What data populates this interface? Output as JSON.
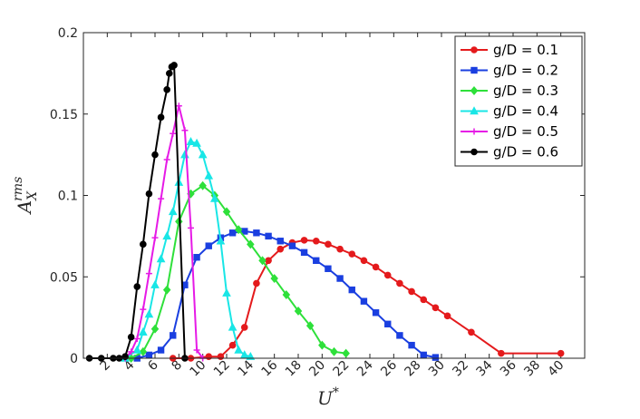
{
  "chart_data": {
    "type": "line",
    "xlabel": "U",
    "xlabel_sup": "*",
    "ylabel": "A",
    "ylabel_sub": "X",
    "ylabel_sup": "rms",
    "xlim": [
      0,
      42
    ],
    "ylim": [
      0,
      0.2
    ],
    "xticks": [
      2,
      4,
      6,
      8,
      10,
      12,
      14,
      16,
      18,
      20,
      22,
      24,
      26,
      28,
      30,
      32,
      34,
      36,
      38,
      40
    ],
    "xtick_labels": [
      "2",
      "4",
      "6",
      "8",
      "10",
      "12",
      "14",
      "16",
      "18",
      "20",
      "22",
      "24",
      "26",
      "28",
      "30",
      "32",
      "34",
      "36",
      "38",
      "40"
    ],
    "yticks": [
      0,
      0.05,
      0.1,
      0.15,
      0.2
    ],
    "ytick_labels": [
      "0",
      "0.05",
      "0.1",
      "0.15",
      "0.2"
    ],
    "grid": false,
    "legend_position": "top-right",
    "series": [
      {
        "name": "g/D = 0.1",
        "color": "#e41a1c",
        "marker": "circle",
        "x": [
          7.5,
          9,
          10.5,
          11.5,
          12.5,
          13.5,
          14.5,
          15.5,
          16.5,
          17.5,
          18.5,
          19.5,
          20.5,
          21.5,
          22.5,
          23.5,
          24.5,
          25.5,
          26.5,
          27.5,
          28.5,
          29.5,
          30.5,
          32.5,
          35,
          40
        ],
        "y": [
          0,
          0,
          0.001,
          0.001,
          0.008,
          0.019,
          0.046,
          0.06,
          0.067,
          0.071,
          0.0725,
          0.072,
          0.07,
          0.067,
          0.064,
          0.06,
          0.056,
          0.051,
          0.046,
          0.041,
          0.036,
          0.031,
          0.026,
          0.016,
          0.003,
          0.003
        ]
      },
      {
        "name": "g/D = 0.2",
        "color": "#1a3fe0",
        "marker": "square",
        "x": [
          4.5,
          5.5,
          6.5,
          7.5,
          8.5,
          9.5,
          10.5,
          11.5,
          12.5,
          13.5,
          14.5,
          15.5,
          16.5,
          17.5,
          18.5,
          19.5,
          20.5,
          21.5,
          22.5,
          23.5,
          24.5,
          25.5,
          26.5,
          27.5,
          28.5,
          29.5
        ],
        "y": [
          0,
          0.002,
          0.005,
          0.014,
          0.045,
          0.062,
          0.069,
          0.074,
          0.077,
          0.078,
          0.077,
          0.075,
          0.072,
          0.069,
          0.065,
          0.06,
          0.055,
          0.049,
          0.042,
          0.035,
          0.028,
          0.021,
          0.014,
          0.008,
          0.002,
          0.0005
        ]
      },
      {
        "name": "g/D = 0.3",
        "color": "#2ee03a",
        "marker": "diamond",
        "x": [
          4,
          5,
          6,
          7,
          8,
          9,
          10,
          11,
          12,
          13,
          14,
          15,
          16,
          17,
          18,
          19,
          20,
          21,
          22
        ],
        "y": [
          0,
          0.004,
          0.018,
          0.042,
          0.084,
          0.101,
          0.106,
          0.1,
          0.09,
          0.079,
          0.07,
          0.06,
          0.049,
          0.039,
          0.029,
          0.02,
          0.008,
          0.004,
          0.003
        ]
      },
      {
        "name": "g/D = 0.4",
        "color": "#19e6e6",
        "marker": "triangle",
        "x": [
          3.5,
          4.5,
          5,
          5.5,
          6,
          6.5,
          7,
          7.5,
          8,
          8.5,
          9,
          9.5,
          10,
          10.5,
          11,
          11.5,
          12,
          12.5,
          13,
          13.5,
          14
        ],
        "y": [
          0,
          0.005,
          0.016,
          0.027,
          0.045,
          0.061,
          0.075,
          0.09,
          0.108,
          0.125,
          0.133,
          0.132,
          0.125,
          0.112,
          0.098,
          0.072,
          0.04,
          0.019,
          0.005,
          0.002,
          0.001
        ]
      },
      {
        "name": "g/D = 0.5",
        "color": "#e61ae6",
        "marker": "plus",
        "x": [
          3.5,
          4,
          4.5,
          5,
          5.5,
          6,
          6.5,
          7,
          7.5,
          8,
          8.5,
          9,
          9.5,
          10
        ],
        "y": [
          0,
          0.004,
          0.012,
          0.03,
          0.052,
          0.074,
          0.098,
          0.122,
          0.138,
          0.155,
          0.14,
          0.08,
          0.005,
          0
        ]
      },
      {
        "name": "g/D = 0.6",
        "color": "#000000",
        "marker": "circle",
        "x": [
          0.5,
          1.5,
          2.5,
          3,
          3.5,
          4,
          4.5,
          5,
          5.5,
          6,
          6.5,
          7,
          7.2,
          7.4,
          7.6,
          8.5
        ],
        "y": [
          0,
          0,
          0,
          0,
          0.001,
          0.013,
          0.044,
          0.07,
          0.101,
          0.125,
          0.148,
          0.165,
          0.175,
          0.179,
          0.18,
          0
        ]
      }
    ]
  }
}
